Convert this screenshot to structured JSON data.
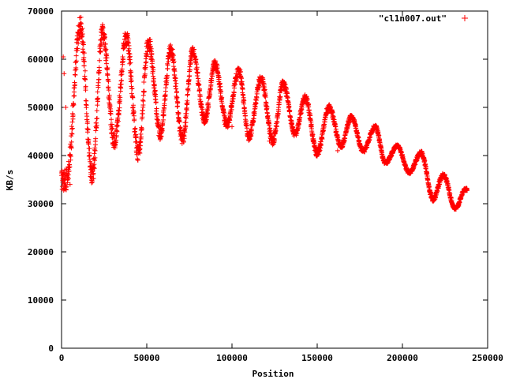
{
  "chart_data": {
    "type": "scatter",
    "xlabel": "Position",
    "ylabel": "KB/s",
    "xlim": [
      0,
      250000
    ],
    "ylim": [
      0,
      70000
    ],
    "x_ticks": [
      0,
      50000,
      100000,
      150000,
      200000,
      250000
    ],
    "y_ticks": [
      0,
      10000,
      20000,
      30000,
      40000,
      50000,
      60000,
      70000
    ],
    "x_tick_labels": [
      "0",
      "50000",
      "100000",
      "150000",
      "200000",
      "250000"
    ],
    "y_tick_labels": [
      "0",
      "10000",
      "20000",
      "30000",
      "40000",
      "50000",
      "60000",
      "70000"
    ],
    "grid": false,
    "legend_position": "top-right",
    "marker": "plus",
    "series": [
      {
        "name": "\"cl1n007.out\"",
        "color": "#ff0000",
        "x_range": [
          0,
          238000
        ],
        "oscillation_period": 13500,
        "peaks": [
          [
            11000,
            67000
          ],
          [
            24000,
            65500
          ],
          [
            38000,
            64500
          ],
          [
            51000,
            63500
          ],
          [
            64000,
            62000
          ],
          [
            77000,
            61500
          ],
          [
            90000,
            59000
          ],
          [
            104000,
            57500
          ],
          [
            117000,
            56000
          ],
          [
            130000,
            55000
          ],
          [
            143000,
            52000
          ],
          [
            157000,
            50000
          ],
          [
            170000,
            48000
          ],
          [
            184000,
            46000
          ],
          [
            197000,
            42000
          ],
          [
            211000,
            40500
          ],
          [
            224000,
            36000
          ],
          [
            237000,
            33000
          ]
        ],
        "troughs": [
          [
            3000,
            35000
          ],
          [
            18000,
            36000
          ],
          [
            31000,
            43000
          ],
          [
            45000,
            40500
          ],
          [
            58000,
            44500
          ],
          [
            71000,
            43500
          ],
          [
            84000,
            47500
          ],
          [
            97000,
            46500
          ],
          [
            110000,
            44000
          ],
          [
            124000,
            43000
          ],
          [
            137000,
            44500
          ],
          [
            150000,
            40500
          ],
          [
            164000,
            42000
          ],
          [
            177000,
            41000
          ],
          [
            190000,
            38500
          ],
          [
            204000,
            36500
          ],
          [
            218000,
            31000
          ],
          [
            231000,
            29000
          ]
        ],
        "outliers": [
          [
            1000,
            60500
          ],
          [
            1500,
            57000
          ],
          [
            2500,
            50000
          ],
          [
            5000,
            34000
          ],
          [
            18500,
            36000
          ],
          [
            46000,
            40500
          ],
          [
            100000,
            46000
          ],
          [
            122000,
            43000
          ],
          [
            162000,
            41000
          ],
          [
            233000,
            29500
          ]
        ]
      }
    ]
  }
}
